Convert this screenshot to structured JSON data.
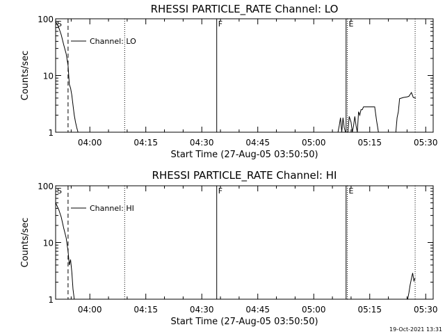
{
  "footer": {
    "timestamp": "19-Oct-2021 13:31"
  },
  "chart_data": [
    {
      "type": "line",
      "title": "RHESSI PARTICLE_RATE Channel: LO",
      "xlabel": "Start Time (27-Aug-05 03:50:50)",
      "ylabel": "Counts/sec",
      "yscale": "log",
      "ylim": [
        1,
        100
      ],
      "xlim": [
        "03:50:50",
        "05:32:00"
      ],
      "xticks": [
        "04:00",
        "04:15",
        "04:30",
        "04:45",
        "05:00",
        "05:15",
        "05:30"
      ],
      "yticks": [
        "1",
        "10",
        "100"
      ],
      "legend": {
        "label": "Channel: LO",
        "placement": "top-left"
      },
      "markers": [
        {
          "label": "S",
          "time": "03:50:50",
          "style": "none"
        },
        {
          "label": "",
          "time": "03:54:10",
          "style": "dashed"
        },
        {
          "label": "",
          "time": "04:09:20",
          "style": "dotted"
        },
        {
          "label": "F",
          "time": "04:34:00",
          "style": "solid"
        },
        {
          "label": "",
          "time": "05:08:40",
          "style": "solid"
        },
        {
          "label": "E",
          "time": "05:09:00",
          "style": "dotted"
        },
        {
          "label": "",
          "time": "05:27:10",
          "style": "dotted"
        }
      ],
      "series": [
        {
          "name": "Channel: LO",
          "segments": [
            {
              "x": [
                "03:50:50",
                "03:51:40",
                "03:52:20",
                "03:53:00",
                "03:53:40",
                "03:54:10",
                "03:54:30",
                "03:54:50",
                "03:55:10",
                "03:55:30",
                "03:55:50",
                "03:56:10",
                "03:56:30",
                "03:56:50"
              ],
              "y": [
                90,
                70,
                52,
                35,
                24,
                15,
                7,
                6,
                4.5,
                3,
                2,
                1.5,
                1.2,
                1
              ]
            },
            {
              "x": [
                "05:06:30",
                "05:06:50",
                "05:07:10",
                "05:07:30",
                "05:07:50",
                "05:08:10",
                "05:08:30"
              ],
              "y": [
                1,
                1.3,
                1.8,
                1,
                1.8,
                1.2,
                1
              ]
            },
            {
              "x": [
                "05:09:10",
                "05:09:30",
                "05:10:00",
                "05:10:20",
                "05:10:40",
                "05:11:00",
                "05:11:20",
                "05:11:40",
                "05:12:00",
                "05:12:20",
                "05:12:40",
                "05:13:00",
                "05:13:20",
                "05:13:40",
                "05:14:10",
                "05:14:40",
                "05:15:20",
                "05:15:50",
                "05:16:20",
                "05:16:50",
                "05:17:20"
              ],
              "y": [
                1,
                1.9,
                1.5,
                1,
                1.3,
                1.9,
                1.3,
                1,
                2.3,
                2,
                2.5,
                2.5,
                2.8,
                2.8,
                2.8,
                2.8,
                2.8,
                2.8,
                2.8,
                1.6,
                1
              ]
            },
            {
              "x": [
                "05:22:00",
                "05:22:20",
                "05:22:40",
                "05:23:00",
                "05:24:00",
                "05:25:00",
                "05:25:30",
                "05:26:10",
                "05:26:40",
                "05:27:20"
              ],
              "y": [
                1,
                1.8,
                2.3,
                3.9,
                4.1,
                4.2,
                4.3,
                5,
                4.1,
                4
              ]
            }
          ]
        }
      ]
    },
    {
      "type": "line",
      "title": "RHESSI PARTICLE_RATE Channel: HI",
      "xlabel": "Start Time (27-Aug-05 03:50:50)",
      "ylabel": "Counts/sec",
      "yscale": "log",
      "ylim": [
        1,
        100
      ],
      "xlim": [
        "03:50:50",
        "05:32:00"
      ],
      "xticks": [
        "04:00",
        "04:15",
        "04:30",
        "04:45",
        "05:00",
        "05:15",
        "05:30"
      ],
      "yticks": [
        "1",
        "10",
        "100"
      ],
      "legend": {
        "label": "Channel: HI",
        "placement": "top-left"
      },
      "markers": [
        {
          "label": "S",
          "time": "03:50:50",
          "style": "none"
        },
        {
          "label": "",
          "time": "03:54:10",
          "style": "dashed"
        },
        {
          "label": "",
          "time": "04:09:20",
          "style": "dotted"
        },
        {
          "label": "F",
          "time": "04:34:00",
          "style": "solid"
        },
        {
          "label": "",
          "time": "05:08:40",
          "style": "solid"
        },
        {
          "label": "E",
          "time": "05:09:00",
          "style": "dotted"
        },
        {
          "label": "",
          "time": "05:27:10",
          "style": "dotted"
        }
      ],
      "series": [
        {
          "name": "Channel: HI",
          "segments": [
            {
              "x": [
                "03:50:50",
                "03:51:40",
                "03:52:20",
                "03:53:00",
                "03:53:40",
                "03:54:10",
                "03:54:30",
                "03:54:50",
                "03:55:10",
                "03:55:30",
                "03:55:50"
              ],
              "y": [
                50,
                38,
                28,
                18,
                12,
                7,
                4,
                5,
                3,
                1.5,
                1
              ]
            },
            {
              "x": [
                "05:25:10",
                "05:25:30",
                "05:25:50",
                "05:26:10",
                "05:26:30",
                "05:26:50",
                "05:27:10"
              ],
              "y": [
                1,
                1.3,
                1.8,
                2.3,
                2.9,
                2.1,
                2.4
              ]
            }
          ]
        }
      ]
    }
  ]
}
